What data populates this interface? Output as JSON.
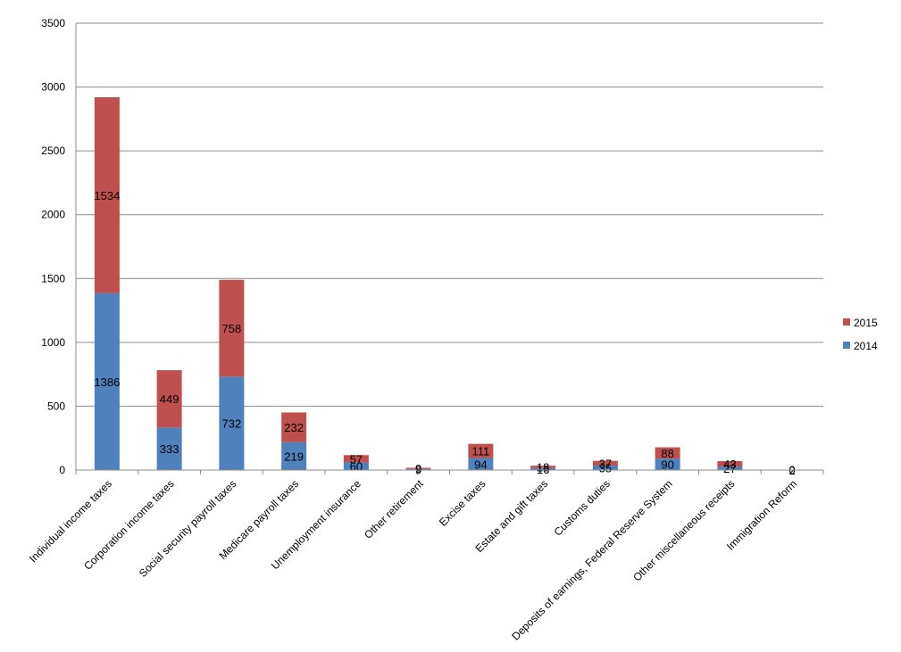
{
  "chart_data": {
    "type": "bar",
    "stacked": true,
    "categories": [
      "Individual income taxes",
      "Corporation income taxes",
      "Social security payroll taxes",
      "Medicare payroll taxes",
      "Unemployment  insurance",
      "Other retirement",
      "Excise taxes",
      "Estate and gift taxes",
      "Customs duties",
      "Deposits of earnings, Federal Reserve System",
      "Other miscellaneous receipts",
      "Immigration Reform"
    ],
    "series": [
      {
        "name": "2014",
        "color": "#4f81bd",
        "values": [
          1386,
          333,
          732,
          219,
          60,
          9,
          94,
          16,
          35,
          90,
          27,
          2
        ],
        "labels": [
          "1386",
          "333",
          "732",
          "219",
          "60",
          "9",
          "94",
          "16",
          "35",
          "90",
          "27",
          "2"
        ]
      },
      {
        "name": "2015",
        "color": "#c0504d",
        "values": [
          1534,
          449,
          758,
          232,
          57,
          9,
          111,
          18,
          37,
          88,
          43,
          0
        ],
        "labels": [
          "1534",
          "449",
          "758",
          "232",
          "57",
          "9",
          "111",
          "18",
          "37",
          "88",
          "43",
          "0"
        ]
      }
    ],
    "y_ticks": [
      "0",
      "500",
      "1000",
      "1500",
      "2000",
      "2500",
      "3000",
      "3500"
    ],
    "ylim": [
      0,
      3500
    ],
    "grid": true,
    "legend_position": "right",
    "legend_order": [
      "2015",
      "2014"
    ]
  }
}
